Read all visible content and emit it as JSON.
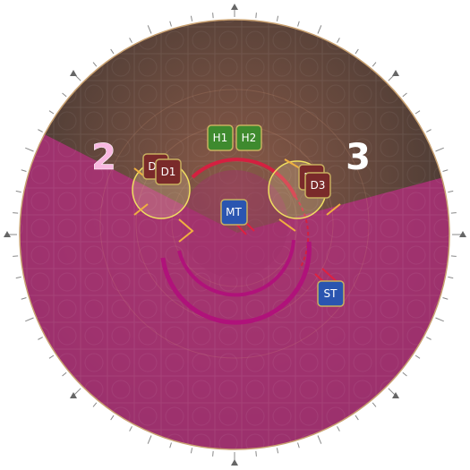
{
  "arena": {
    "floor_color": "#5a4840",
    "aoe_color": "#b0307a",
    "rim_color": "#c8a070"
  },
  "waymarks": {
    "two": {
      "label": "2",
      "color": "#f8b8e0"
    },
    "three": {
      "label": "3",
      "color": "#ffffff"
    }
  },
  "players": [
    {
      "id": "h1",
      "label": "H1",
      "role": "healer",
      "color": "#3e8a2e"
    },
    {
      "id": "h2",
      "label": "H2",
      "role": "healer",
      "color": "#3e8a2e"
    },
    {
      "id": "d2",
      "label": "D",
      "role": "dps",
      "color": "#7a2a2a"
    },
    {
      "id": "d1",
      "label": "D1",
      "role": "dps",
      "color": "#7a2a2a"
    },
    {
      "id": "d4",
      "label": "D",
      "role": "dps",
      "color": "#7a2a2a"
    },
    {
      "id": "d3",
      "label": "D3",
      "role": "dps",
      "color": "#7a2a2a"
    },
    {
      "id": "mt",
      "label": "MT",
      "role": "tank",
      "color": "#2a55b0"
    },
    {
      "id": "st",
      "label": "ST",
      "role": "tank",
      "color": "#2a55b0"
    }
  ]
}
